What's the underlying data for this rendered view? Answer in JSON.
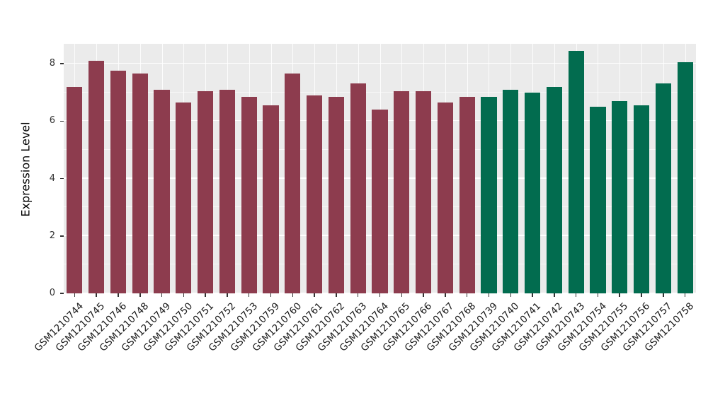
{
  "chart_data": {
    "type": "bar",
    "title": "",
    "xlabel": "",
    "ylabel": "Expression Level",
    "ylim": [
      0,
      8.7
    ],
    "yticks": [
      0,
      2,
      4,
      6,
      8
    ],
    "yticks_minor": [
      1,
      3,
      5,
      7
    ],
    "grid": true,
    "legend": "none",
    "panel_background": "#EBEBEB",
    "group_colors": {
      "group1": "#8D3C4E",
      "group2": "#026C4F"
    },
    "categories": [
      "GSM1210744",
      "GSM1210745",
      "GSM1210746",
      "GSM1210748",
      "GSM1210749",
      "GSM1210750",
      "GSM1210751",
      "GSM1210752",
      "GSM1210753",
      "GSM1210759",
      "GSM1210760",
      "GSM1210761",
      "GSM1210762",
      "GSM1210763",
      "GSM1210764",
      "GSM1210765",
      "GSM1210766",
      "GSM1210767",
      "GSM1210768",
      "GSM1210739",
      "GSM1210740",
      "GSM1210741",
      "GSM1210742",
      "GSM1210743",
      "GSM1210754",
      "GSM1210755",
      "GSM1210756",
      "GSM1210757",
      "GSM1210758"
    ],
    "values": [
      7.2,
      8.1,
      7.75,
      7.65,
      7.1,
      6.65,
      7.05,
      7.1,
      6.85,
      6.55,
      7.65,
      6.9,
      6.85,
      7.3,
      6.4,
      7.05,
      7.05,
      6.65,
      6.85,
      6.85,
      7.1,
      7.0,
      7.2,
      8.45,
      6.5,
      6.7,
      6.55,
      7.3,
      8.05
    ],
    "groups": [
      "group1",
      "group1",
      "group1",
      "group1",
      "group1",
      "group1",
      "group1",
      "group1",
      "group1",
      "group1",
      "group1",
      "group1",
      "group1",
      "group1",
      "group1",
      "group1",
      "group1",
      "group1",
      "group1",
      "group2",
      "group2",
      "group2",
      "group2",
      "group2",
      "group2",
      "group2",
      "group2",
      "group2",
      "group2"
    ]
  }
}
